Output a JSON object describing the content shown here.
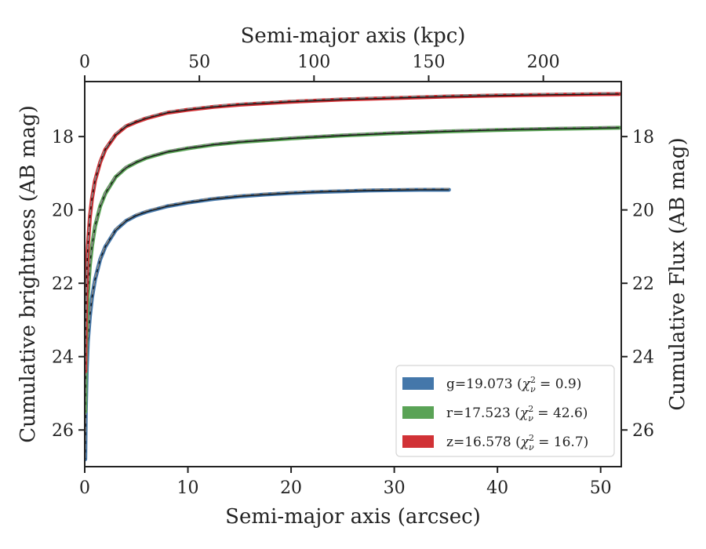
{
  "chart_data": {
    "type": "line",
    "title": "",
    "xlabel": "Semi-major axis (arcsec)",
    "xlabel_top": "Semi-major axis (kpc)",
    "ylabel": "Cumulative brightness (AB mag)",
    "ylabel_right": "Cumulative Flux (AB mag)",
    "xlim": [
      0,
      52
    ],
    "ylim": [
      27,
      16.5
    ],
    "y_inverted": true,
    "x_ticks": [
      0,
      10,
      20,
      30,
      40,
      50
    ],
    "x_tick_labels": [
      "0",
      "10",
      "20",
      "30",
      "40",
      "50"
    ],
    "top_ticks_kpc": [
      0,
      50,
      100,
      150,
      200
    ],
    "top_tick_labels": [
      "0",
      "50",
      "100",
      "150",
      "200"
    ],
    "kpc_per_arcsec": 4.5,
    "y_ticks": [
      18,
      20,
      22,
      24,
      26
    ],
    "y_tick_labels": [
      "18",
      "20",
      "22",
      "24",
      "26"
    ],
    "grid": false,
    "legend_position": "bottom-right",
    "model_line_style": "dashed gray",
    "series": [
      {
        "name": "g=19.073 (χ²ν = 0.9)",
        "label_main": "g=19.073 (",
        "label_chi": "χ",
        "label_sup": "2",
        "label_sub": "ν",
        "label_rest": " = 0.9)",
        "color": "#4477aa",
        "x": [
          0.05,
          0.1,
          0.2,
          0.3,
          0.5,
          0.7,
          1,
          1.5,
          2,
          3,
          4,
          5,
          6,
          8,
          10,
          12.5,
          15,
          17.5,
          20,
          22.5,
          25,
          27.5,
          30,
          32.5,
          35.3
        ],
        "y": [
          26.8,
          25.5,
          24.3,
          23.6,
          22.9,
          22.4,
          21.9,
          21.35,
          21.0,
          20.55,
          20.3,
          20.15,
          20.05,
          19.9,
          19.8,
          19.7,
          19.63,
          19.58,
          19.54,
          19.51,
          19.49,
          19.47,
          19.46,
          19.45,
          19.45
        ]
      },
      {
        "name": "r=17.523 (χ²ν = 42.6)",
        "label_main": "r=17.523 (",
        "label_chi": "χ",
        "label_sup": "2",
        "label_sub": "ν",
        "label_rest": " = 42.6)",
        "color": "#5aa356",
        "x": [
          0.05,
          0.1,
          0.2,
          0.3,
          0.5,
          0.7,
          1,
          1.5,
          2,
          3,
          4,
          5,
          6,
          8,
          10,
          12.5,
          15,
          20,
          25,
          30,
          35,
          40,
          45,
          51.8
        ],
        "y": [
          25.5,
          24.3,
          23.0,
          22.3,
          21.5,
          21.0,
          20.45,
          19.9,
          19.55,
          19.1,
          18.85,
          18.7,
          18.58,
          18.42,
          18.32,
          18.22,
          18.15,
          18.05,
          17.97,
          17.91,
          17.86,
          17.82,
          17.79,
          17.76
        ]
      },
      {
        "name": "z=16.578 (χ²ν = 16.7)",
        "label_main": "z=16.578 (",
        "label_chi": "χ",
        "label_sup": "2",
        "label_sub": "ν",
        "label_rest": " = 16.7)",
        "color": "#d13236",
        "x": [
          0.05,
          0.1,
          0.2,
          0.3,
          0.5,
          0.7,
          1,
          1.5,
          2,
          3,
          4,
          5,
          6,
          8,
          10,
          12.5,
          15,
          20,
          25,
          30,
          35,
          40,
          45,
          51.8
        ],
        "y": [
          24.4,
          23.0,
          21.7,
          21.0,
          20.2,
          19.7,
          19.2,
          18.7,
          18.35,
          17.95,
          17.72,
          17.6,
          17.5,
          17.35,
          17.27,
          17.19,
          17.13,
          17.05,
          16.99,
          16.95,
          16.91,
          16.88,
          16.86,
          16.84
        ]
      }
    ]
  }
}
